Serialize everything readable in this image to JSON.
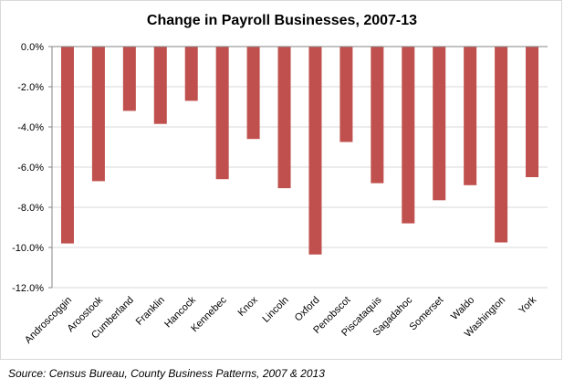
{
  "chart_data": {
    "type": "bar",
    "title": "Change in Payroll Businesses, 2007-13",
    "xlabel": "",
    "ylabel": "",
    "categories": [
      "Androscoggin",
      "Aroostook",
      "Cumberland",
      "Franklin",
      "Hancock",
      "Kennebec",
      "Knox",
      "Lincoln",
      "Oxford",
      "Penobscot",
      "Piscataquis",
      "Sagadahoc",
      "Somerset",
      "Waldo",
      "Washington",
      "York"
    ],
    "values": [
      -9.8,
      -6.7,
      -3.2,
      -3.85,
      -2.7,
      -6.6,
      -4.6,
      -7.05,
      -10.35,
      -4.75,
      -6.8,
      -8.8,
      -7.65,
      -6.9,
      -9.75,
      -6.5
    ],
    "ylim": [
      -12,
      0
    ],
    "yticks": [
      0,
      -2,
      -4,
      -6,
      -8,
      -10,
      -12
    ],
    "ytick_labels": [
      "0.0%",
      "-2.0%",
      "-4.0%",
      "-6.0%",
      "-8.0%",
      "-10.0%",
      "-12.0%"
    ],
    "grid": true,
    "bar_color": "#C0504D",
    "grid_color": "#D9D9D9"
  },
  "source": "Source: Census Bureau, County Business Patterns, 2007 & 2013"
}
